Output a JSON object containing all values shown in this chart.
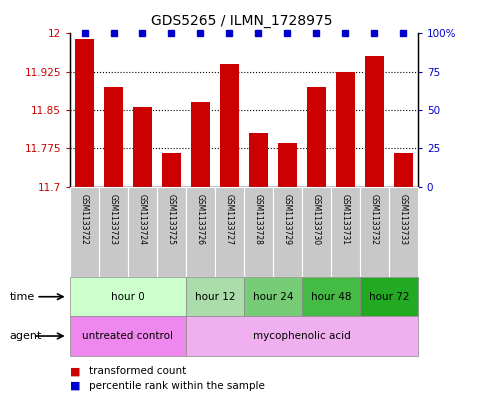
{
  "title": "GDS5265 / ILMN_1728975",
  "samples": [
    "GSM1133722",
    "GSM1133723",
    "GSM1133724",
    "GSM1133725",
    "GSM1133726",
    "GSM1133727",
    "GSM1133728",
    "GSM1133729",
    "GSM1133730",
    "GSM1133731",
    "GSM1133732",
    "GSM1133733"
  ],
  "bar_values": [
    11.99,
    11.895,
    11.855,
    11.765,
    11.865,
    11.94,
    11.805,
    11.785,
    11.895,
    11.925,
    11.955,
    11.765
  ],
  "percentile_values": [
    100,
    100,
    100,
    100,
    100,
    100,
    100,
    100,
    100,
    100,
    100,
    100
  ],
  "bar_color": "#cc0000",
  "percentile_color": "#0000cc",
  "ylim_left": [
    11.7,
    12.0
  ],
  "ylim_right": [
    0,
    100
  ],
  "yticks_left": [
    11.7,
    11.775,
    11.85,
    11.925,
    12.0
  ],
  "yticks_right": [
    0,
    25,
    50,
    75,
    100
  ],
  "ytick_labels_left": [
    "11.7",
    "11.775",
    "11.85",
    "11.925",
    "12"
  ],
  "ytick_labels_right": [
    "0",
    "25",
    "50",
    "75",
    "100%"
  ],
  "dotted_lines": [
    11.775,
    11.85,
    11.925
  ],
  "time_groups": [
    {
      "label": "hour 0",
      "start": 0,
      "end": 3,
      "color": "#ccffcc"
    },
    {
      "label": "hour 12",
      "start": 4,
      "end": 5,
      "color": "#aaddaa"
    },
    {
      "label": "hour 24",
      "start": 6,
      "end": 7,
      "color": "#77cc77"
    },
    {
      "label": "hour 48",
      "start": 8,
      "end": 9,
      "color": "#44bb44"
    },
    {
      "label": "hour 72",
      "start": 10,
      "end": 11,
      "color": "#22aa22"
    }
  ],
  "agent_groups": [
    {
      "label": "untreated control",
      "start": 0,
      "end": 3,
      "color": "#ee88ee"
    },
    {
      "label": "mycophenolic acid",
      "start": 4,
      "end": 11,
      "color": "#f0b0f0"
    }
  ],
  "legend_bar_label": "transformed count",
  "legend_dot_label": "percentile rank within the sample",
  "left_axis_color": "#cc0000",
  "right_axis_color": "#0000cc",
  "gsm_bg_color": "#c8c8c8",
  "gsm_border_color": "#aaaaaa"
}
